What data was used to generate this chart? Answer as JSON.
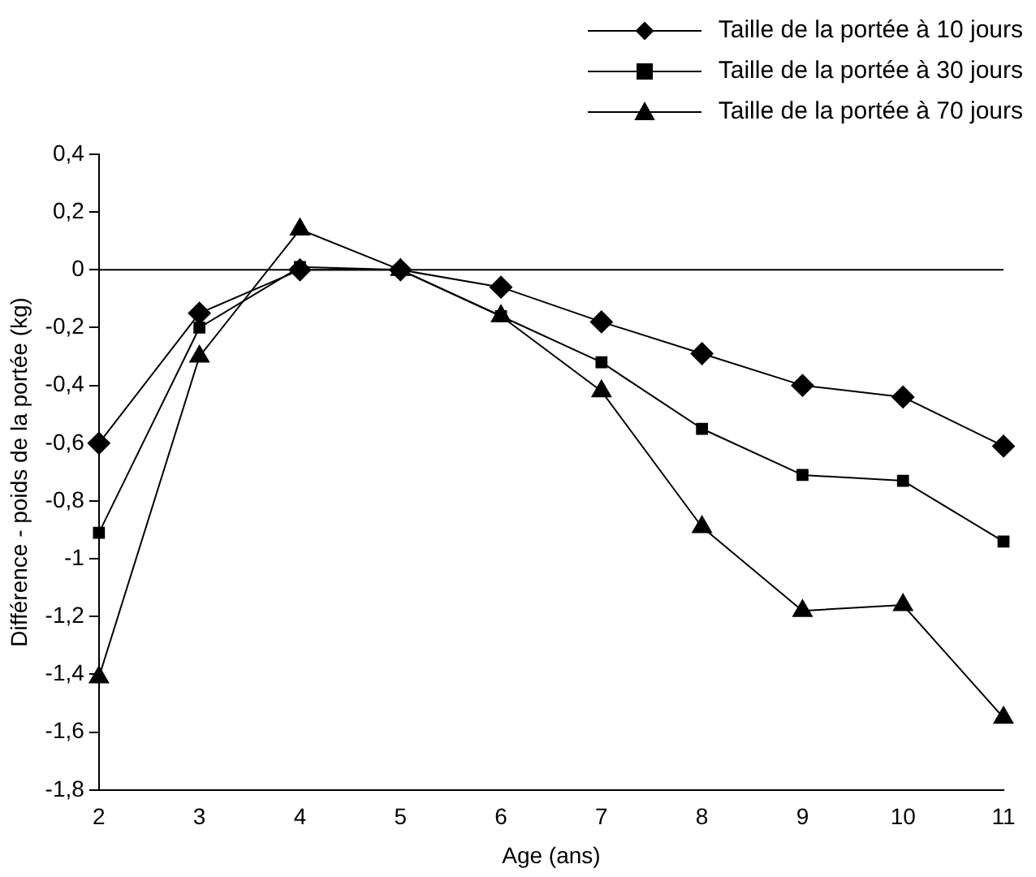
{
  "chart_data": {
    "type": "line",
    "xlabel": "Age (ans)",
    "ylabel": "Différence - poids de la portée (kg)",
    "categories": [
      "2",
      "3",
      "4",
      "5",
      "6",
      "7",
      "8",
      "9",
      "10",
      "11"
    ],
    "series": [
      {
        "name": "Taille de la portée à 10 jours",
        "color": "#000000",
        "marker": "diamond",
        "values": [
          -0.6,
          -0.15,
          0,
          0,
          -0.06,
          -0.18,
          -0.29,
          -0.4,
          -0.44,
          -0.61
        ]
      },
      {
        "name": "Taille de la portée à 30 jours",
        "color": "#000000",
        "marker": "square",
        "values": [
          -0.91,
          -0.2,
          0.01,
          0,
          -0.16,
          -0.32,
          -0.55,
          -0.71,
          -0.73,
          -0.94
        ]
      },
      {
        "name": "Taille de la portée à 70 jours",
        "color": "#000000",
        "marker": "triangle",
        "values": [
          -1.41,
          -0.3,
          0.14,
          0,
          -0.16,
          -0.42,
          -0.89,
          -1.18,
          -1.16,
          -1.55
        ]
      }
    ],
    "ylim": [
      -1.8,
      0.4
    ],
    "yticks": [
      {
        "value": 0.4,
        "label": "0,4"
      },
      {
        "value": 0.2,
        "label": "0,2"
      },
      0,
      {
        "value": -0.2,
        "label": "-0,2"
      },
      {
        "value": -0.4,
        "label": "-0,4"
      },
      {
        "value": -0.6,
        "label": "-0,6"
      },
      {
        "value": -0.8,
        "label": "-0,8"
      },
      -1,
      {
        "value": -1.2,
        "label": "-1,2"
      },
      {
        "value": -1.4,
        "label": "-1,4"
      },
      {
        "value": -1.6,
        "label": "-1,6"
      },
      {
        "value": -1.8,
        "label": "-1,8"
      }
    ],
    "ref_lines": [
      {
        "axis": "y",
        "value": 0,
        "color": "#000000"
      }
    ],
    "grid": false,
    "legend": "top right",
    "line_style": "solid"
  }
}
